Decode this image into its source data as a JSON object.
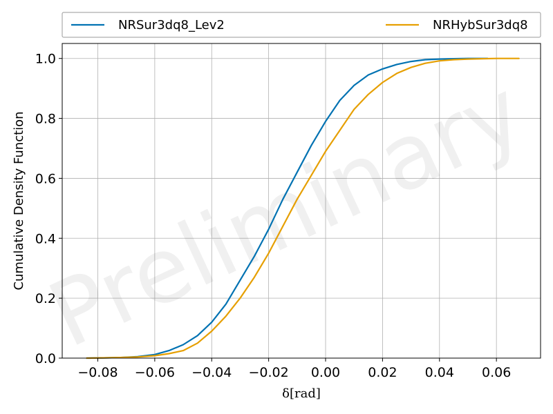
{
  "chart_data": {
    "type": "line",
    "title": "",
    "xlabel": "δ[rad]",
    "ylabel": "Cumulative Density Function",
    "watermark": "Preliminary",
    "xlim": [
      -0.0925,
      0.0755
    ],
    "ylim": [
      0.0,
      1.05
    ],
    "xticks": [
      -0.08,
      -0.06,
      -0.04,
      -0.02,
      0.0,
      0.02,
      0.04,
      0.06
    ],
    "xtick_labels": [
      "−0.08",
      "−0.06",
      "−0.04",
      "−0.02",
      "0.00",
      "0.02",
      "0.04",
      "0.06"
    ],
    "yticks": [
      0.0,
      0.2,
      0.4,
      0.6,
      0.8,
      1.0
    ],
    "ytick_labels": [
      "0.0",
      "0.2",
      "0.4",
      "0.6",
      "0.8",
      "1.0"
    ],
    "grid": true,
    "legend_position": "above-plot",
    "series": [
      {
        "name": "NRSur3dq8_Lev2",
        "color": "#0072b2",
        "x": [
          -0.084,
          -0.078,
          -0.072,
          -0.066,
          -0.06,
          -0.055,
          -0.05,
          -0.045,
          -0.04,
          -0.035,
          -0.03,
          -0.025,
          -0.02,
          -0.015,
          -0.01,
          -0.005,
          0.0,
          0.005,
          0.01,
          0.015,
          0.02,
          0.025,
          0.03,
          0.035,
          0.04,
          0.045,
          0.05,
          0.057
        ],
        "y": [
          0.0,
          0.001,
          0.002,
          0.005,
          0.012,
          0.025,
          0.045,
          0.075,
          0.12,
          0.18,
          0.26,
          0.34,
          0.43,
          0.53,
          0.62,
          0.71,
          0.79,
          0.86,
          0.91,
          0.945,
          0.965,
          0.98,
          0.99,
          0.996,
          0.998,
          0.999,
          1.0,
          1.0
        ]
      },
      {
        "name": "NRHybSur3dq8",
        "color": "#e69f00",
        "x": [
          -0.084,
          -0.078,
          -0.072,
          -0.066,
          -0.06,
          -0.055,
          -0.05,
          -0.045,
          -0.04,
          -0.035,
          -0.03,
          -0.025,
          -0.02,
          -0.015,
          -0.01,
          -0.005,
          0.0,
          0.005,
          0.01,
          0.015,
          0.02,
          0.025,
          0.03,
          0.035,
          0.04,
          0.045,
          0.05,
          0.055,
          0.06,
          0.068
        ],
        "y": [
          0.0,
          0.001,
          0.002,
          0.004,
          0.008,
          0.015,
          0.025,
          0.05,
          0.09,
          0.14,
          0.2,
          0.27,
          0.35,
          0.44,
          0.53,
          0.61,
          0.69,
          0.76,
          0.83,
          0.88,
          0.92,
          0.95,
          0.97,
          0.984,
          0.992,
          0.996,
          0.998,
          0.999,
          1.0,
          1.0
        ]
      }
    ]
  }
}
